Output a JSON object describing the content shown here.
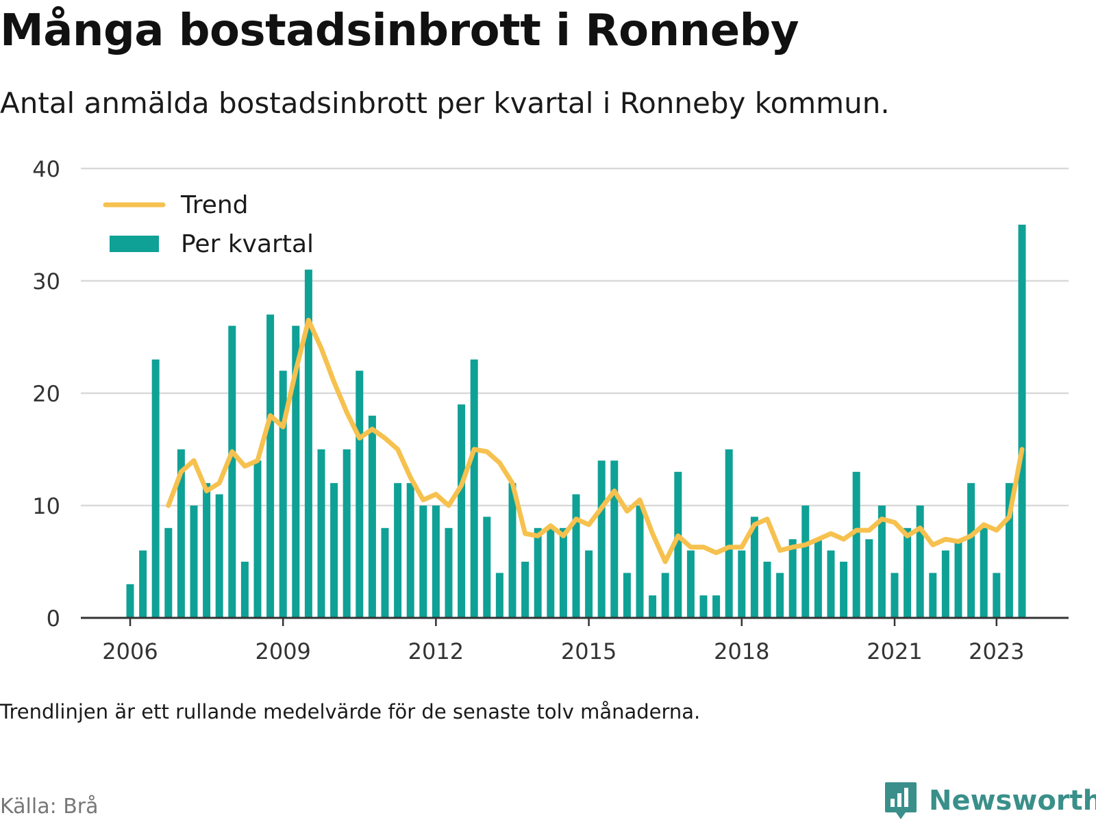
{
  "title": "Många bostadsinbrott i Ronneby",
  "subtitle": "Antal anmälda bostadsinbrott per kvartal i Ronneby kommun.",
  "footnote": "Trendlinjen är ett rullande medelvärde för de senaste tolv månaderna.",
  "source": "Källa: Brå",
  "brand": "Newsworthy",
  "colors": {
    "bar": "#0fa196",
    "trend": "#f6c14e",
    "grid": "#d9d9d9",
    "axis": "#333333"
  },
  "chart_data": {
    "type": "bar",
    "ylim": [
      0,
      40
    ],
    "y_ticks": [
      "0",
      "10",
      "20",
      "30",
      "40"
    ],
    "x_ticks": [
      {
        "label": "2006",
        "index": 0
      },
      {
        "label": "2009",
        "index": 12
      },
      {
        "label": "2012",
        "index": 24
      },
      {
        "label": "2015",
        "index": 36
      },
      {
        "label": "2018",
        "index": 48
      },
      {
        "label": "2021",
        "index": 60
      },
      {
        "label": "2023",
        "index": 68
      }
    ],
    "legend": {
      "placement": "top-left",
      "trend_label": "Trend",
      "bar_label": "Per kvartal"
    },
    "categories": [
      "2006 Q1",
      "2006 Q2",
      "2006 Q3",
      "2006 Q4",
      "2007 Q1",
      "2007 Q2",
      "2007 Q3",
      "2007 Q4",
      "2008 Q1",
      "2008 Q2",
      "2008 Q3",
      "2008 Q4",
      "2009 Q1",
      "2009 Q2",
      "2009 Q3",
      "2009 Q4",
      "2010 Q1",
      "2010 Q2",
      "2010 Q3",
      "2010 Q4",
      "2011 Q1",
      "2011 Q2",
      "2011 Q3",
      "2011 Q4",
      "2012 Q1",
      "2012 Q2",
      "2012 Q3",
      "2012 Q4",
      "2013 Q1",
      "2013 Q2",
      "2013 Q3",
      "2013 Q4",
      "2014 Q1",
      "2014 Q2",
      "2014 Q3",
      "2014 Q4",
      "2015 Q1",
      "2015 Q2",
      "2015 Q3",
      "2015 Q4",
      "2016 Q1",
      "2016 Q2",
      "2016 Q3",
      "2016 Q4",
      "2017 Q1",
      "2017 Q2",
      "2017 Q3",
      "2017 Q4",
      "2018 Q1",
      "2018 Q2",
      "2018 Q3",
      "2018 Q4",
      "2019 Q1",
      "2019 Q2",
      "2019 Q3",
      "2019 Q4",
      "2020 Q1",
      "2020 Q2",
      "2020 Q3",
      "2020 Q4",
      "2021 Q1",
      "2021 Q2",
      "2021 Q3",
      "2021 Q4",
      "2022 Q1",
      "2022 Q2",
      "2022 Q3",
      "2022 Q4",
      "2023 Q1",
      "2023 Q2",
      "2023 Q3"
    ],
    "series": [
      {
        "type": "bar",
        "values": [
          3,
          6,
          23,
          8,
          15,
          10,
          12,
          11,
          26,
          5,
          14,
          27,
          22,
          26,
          31,
          15,
          12,
          15,
          22,
          18,
          8,
          12,
          12,
          10,
          10,
          8,
          19,
          23,
          9,
          4,
          12,
          5,
          8,
          8,
          8,
          11,
          6,
          14,
          14,
          4,
          10,
          2,
          4,
          13,
          6,
          2,
          2,
          15,
          6,
          9,
          5,
          4,
          7,
          10,
          7,
          6,
          5,
          13,
          7,
          10,
          4,
          8,
          10,
          4,
          6,
          7,
          12,
          8,
          4,
          12,
          35
        ]
      },
      {
        "type": "line",
        "values": [
          null,
          null,
          null,
          10,
          13,
          14,
          11.3,
          12,
          14.8,
          13.5,
          14,
          18,
          17,
          22,
          26.5,
          24,
          21,
          18.3,
          16,
          16.8,
          16,
          15,
          12.5,
          10.5,
          11,
          10,
          11.8,
          15,
          14.8,
          13.8,
          12,
          7.5,
          7.3,
          8.2,
          7.3,
          8.8,
          8.3,
          9.8,
          11.3,
          9.5,
          10.5,
          7.5,
          5,
          7.3,
          6.3,
          6.3,
          5.8,
          6.3,
          6.3,
          8.3,
          8.8,
          6,
          6.3,
          6.5,
          7,
          7.5,
          7,
          7.8,
          7.8,
          8.8,
          8.5,
          7.3,
          8,
          6.5,
          7,
          6.8,
          7.3,
          8.3,
          7.8,
          9,
          15
        ]
      }
    ]
  }
}
